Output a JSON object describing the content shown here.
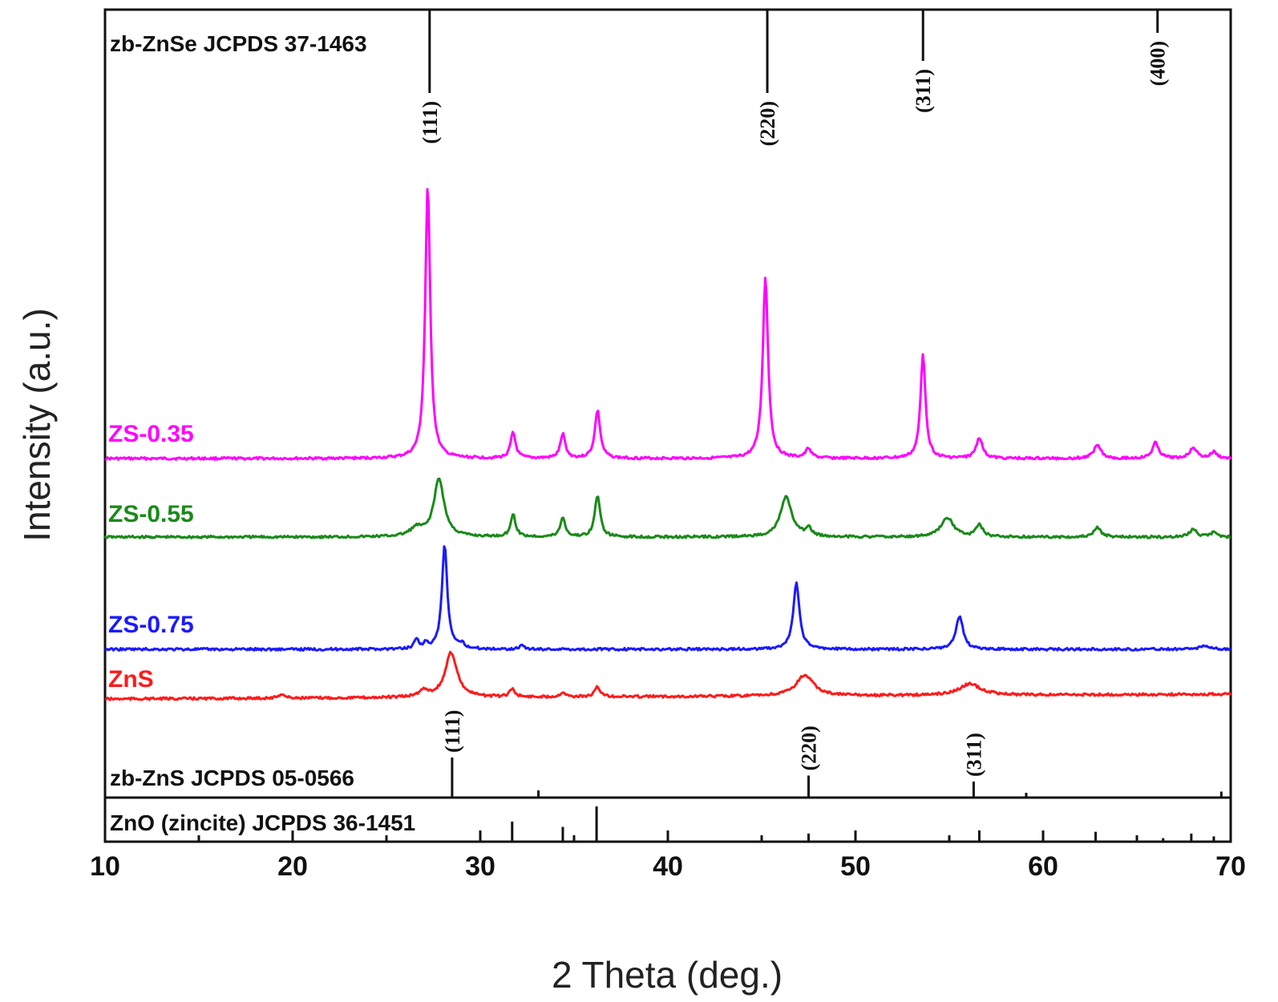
{
  "chart_data": {
    "type": "line",
    "xlabel": "2 Theta (deg.)",
    "ylabel": "Intensity (a.u.)",
    "xlim": [
      10,
      70
    ],
    "x_ticks": [
      10,
      20,
      30,
      40,
      50,
      60,
      70
    ],
    "x_tick_labels": [
      "10",
      "20",
      "30",
      "40",
      "50",
      "60",
      "70"
    ],
    "grid": false,
    "legend": "inline labels at left of each trace",
    "series": [
      {
        "name": "ZS-0.35",
        "color": "#ff00ff",
        "baseline": 0.0,
        "peaks": [
          {
            "x": 27.2,
            "h": 340,
            "w": 0.16
          },
          {
            "x": 31.75,
            "h": 32,
            "w": 0.16
          },
          {
            "x": 34.4,
            "h": 30,
            "w": 0.16
          },
          {
            "x": 36.25,
            "h": 60,
            "w": 0.17
          },
          {
            "x": 45.2,
            "h": 226,
            "w": 0.17
          },
          {
            "x": 47.5,
            "h": 12,
            "w": 0.18
          },
          {
            "x": 53.6,
            "h": 130,
            "w": 0.16
          },
          {
            "x": 56.6,
            "h": 26,
            "w": 0.2
          },
          {
            "x": 62.9,
            "h": 18,
            "w": 0.22
          },
          {
            "x": 66.0,
            "h": 20,
            "w": 0.2
          },
          {
            "x": 68.0,
            "h": 14,
            "w": 0.22
          },
          {
            "x": 69.1,
            "h": 8,
            "w": 0.2
          }
        ]
      },
      {
        "name": "ZS-0.55",
        "color": "#1a8a1a",
        "baseline": 0.0,
        "peaks": [
          {
            "x": 27.8,
            "h": 72,
            "w": 0.33
          },
          {
            "x": 26.6,
            "h": 10,
            "w": 0.4
          },
          {
            "x": 31.75,
            "h": 28,
            "w": 0.16
          },
          {
            "x": 34.4,
            "h": 24,
            "w": 0.16
          },
          {
            "x": 36.25,
            "h": 52,
            "w": 0.17
          },
          {
            "x": 46.3,
            "h": 50,
            "w": 0.36
          },
          {
            "x": 47.5,
            "h": 10,
            "w": 0.18
          },
          {
            "x": 54.9,
            "h": 24,
            "w": 0.4
          },
          {
            "x": 56.6,
            "h": 16,
            "w": 0.2
          },
          {
            "x": 62.9,
            "h": 12,
            "w": 0.22
          },
          {
            "x": 68.0,
            "h": 10,
            "w": 0.22
          },
          {
            "x": 69.1,
            "h": 6,
            "w": 0.2
          }
        ]
      },
      {
        "name": "ZS-0.75",
        "color": "#1a1aff",
        "baseline": 0.0,
        "peaks": [
          {
            "x": 28.1,
            "h": 130,
            "w": 0.17
          },
          {
            "x": 26.6,
            "h": 12,
            "w": 0.15
          },
          {
            "x": 27.1,
            "h": 6,
            "w": 0.15
          },
          {
            "x": 29.0,
            "h": 6,
            "w": 0.2
          },
          {
            "x": 32.2,
            "h": 5,
            "w": 0.15
          },
          {
            "x": 46.85,
            "h": 82,
            "w": 0.2
          },
          {
            "x": 55.55,
            "h": 42,
            "w": 0.22
          },
          {
            "x": 68.6,
            "h": 5,
            "w": 0.3
          }
        ]
      },
      {
        "name": "ZnS",
        "color": "#ff1a1a",
        "baseline": 0.0,
        "peaks": [
          {
            "x": 28.45,
            "h": 56,
            "w": 0.38
          },
          {
            "x": 27.0,
            "h": 8,
            "w": 0.3
          },
          {
            "x": 31.7,
            "h": 10,
            "w": 0.17
          },
          {
            "x": 34.4,
            "h": 6,
            "w": 0.17
          },
          {
            "x": 36.25,
            "h": 12,
            "w": 0.18
          },
          {
            "x": 47.3,
            "h": 26,
            "w": 0.55
          },
          {
            "x": 56.1,
            "h": 14,
            "w": 0.7
          },
          {
            "x": 19.4,
            "h": 5,
            "w": 0.2
          }
        ]
      }
    ],
    "reference_patterns": [
      {
        "name": "zb-ZnSe JCPDS 37-1463",
        "lines": [
          {
            "x": 27.3,
            "label": "(111)",
            "rel": 1.0
          },
          {
            "x": 45.3,
            "label": "(220)",
            "rel": 1.0
          },
          {
            "x": 53.6,
            "label": "(311)",
            "rel": 0.6
          },
          {
            "x": 66.1,
            "label": "(400)",
            "rel": 0.25
          }
        ]
      },
      {
        "name": "zb-ZnS JCPDS 05-0566",
        "lines": [
          {
            "x": 28.5,
            "label": "(111)",
            "rel": 1.0
          },
          {
            "x": 33.1,
            "label": "",
            "rel": 0.18
          },
          {
            "x": 47.5,
            "label": "(220)",
            "rel": 0.55
          },
          {
            "x": 56.3,
            "label": "(311)",
            "rel": 0.4
          },
          {
            "x": 59.1,
            "label": "",
            "rel": 0.12
          },
          {
            "x": 69.5,
            "label": "",
            "rel": 0.15
          }
        ]
      },
      {
        "name": "ZnO (zincite) JCPDS 36-1451",
        "lines": [
          {
            "x": 31.7,
            "label": "",
            "rel": 0.57
          },
          {
            "x": 34.4,
            "label": "",
            "rel": 0.42
          },
          {
            "x": 36.2,
            "label": "",
            "rel": 1.0
          },
          {
            "x": 47.5,
            "label": "",
            "rel": 0.23
          },
          {
            "x": 56.6,
            "label": "",
            "rel": 0.32
          },
          {
            "x": 62.8,
            "label": "",
            "rel": 0.28
          },
          {
            "x": 66.4,
            "label": "",
            "rel": 0.1
          },
          {
            "x": 67.9,
            "label": "",
            "rel": 0.23
          },
          {
            "x": 69.1,
            "label": "",
            "rel": 0.15
          }
        ]
      }
    ]
  }
}
